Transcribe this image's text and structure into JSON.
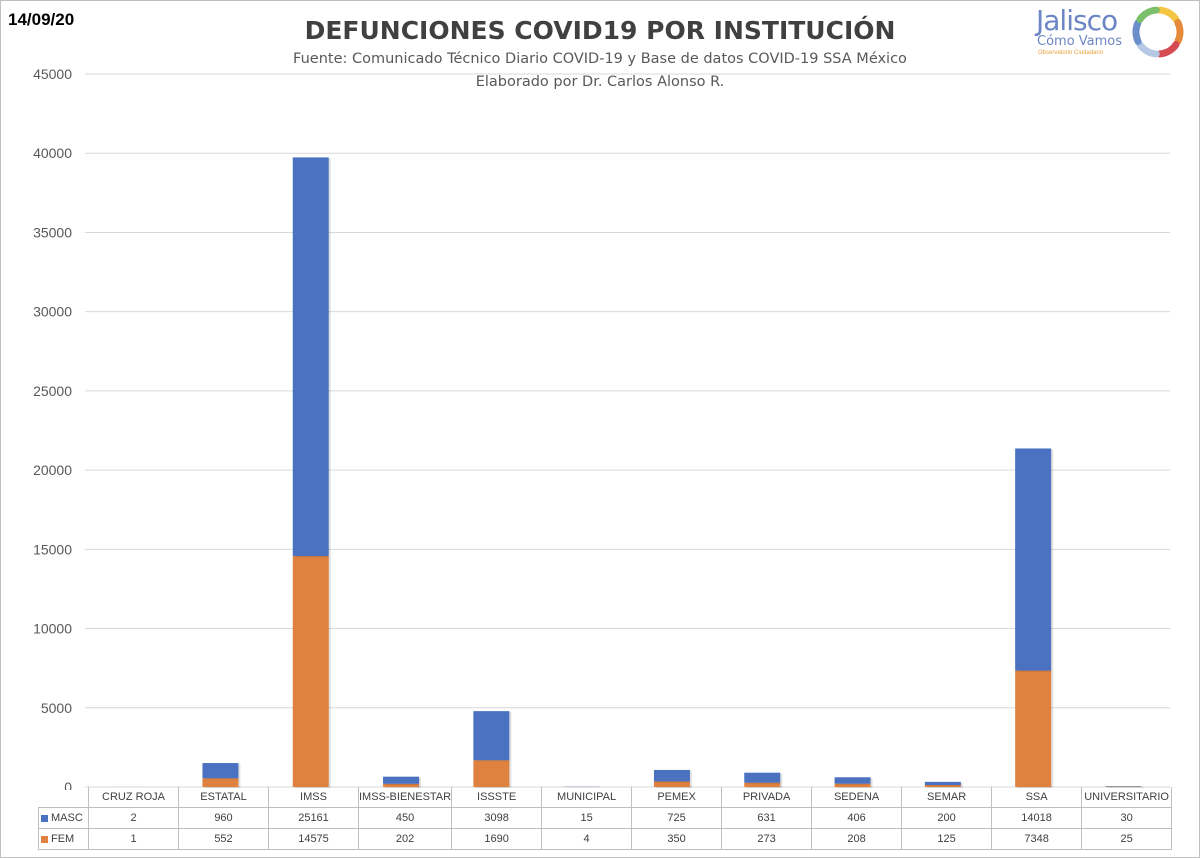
{
  "header": {
    "date": "14/09/20",
    "title": "DEFUNCIONES COVID19 POR INSTITUCIÓN",
    "subtitle_line1": "Fuente: Comunicado Técnico Diario COVID-19 y Base de datos COVID-19 SSA México",
    "subtitle_line2": "Elaborado por Dr. Carlos Alonso R."
  },
  "logo": {
    "name": "Jalisco",
    "subname": "Cómo Vamos",
    "tagline": "Observatorio Ciudadano",
    "ring_colors": [
      "#f4c542",
      "#e58a3a",
      "#d64b52",
      "#b7c7e6",
      "#6a8fcb",
      "#7bbf6a"
    ]
  },
  "chart_data": {
    "type": "bar",
    "stacked": true,
    "categories": [
      "CRUZ ROJA",
      "ESTATAL",
      "IMSS",
      "IMSS-BIENESTAR",
      "ISSSTE",
      "MUNICIPAL",
      "PEMEX",
      "PRIVADA",
      "SEDENA",
      "SEMAR",
      "SSA",
      "UNIVERSITARIO"
    ],
    "series": [
      {
        "name": "FEM",
        "color": "#e0823f",
        "values": [
          1,
          552,
          14575,
          202,
          1690,
          4,
          350,
          273,
          208,
          125,
          7348,
          25
        ]
      },
      {
        "name": "MASC",
        "color": "#4a72c0",
        "values": [
          2,
          960,
          25161,
          450,
          3098,
          15,
          725,
          631,
          406,
          200,
          14018,
          30
        ]
      }
    ],
    "ylim": [
      0,
      45000
    ],
    "yticks": [
      0,
      5000,
      10000,
      15000,
      20000,
      25000,
      30000,
      35000,
      40000,
      45000
    ],
    "grid": true,
    "legend": "data-table"
  }
}
